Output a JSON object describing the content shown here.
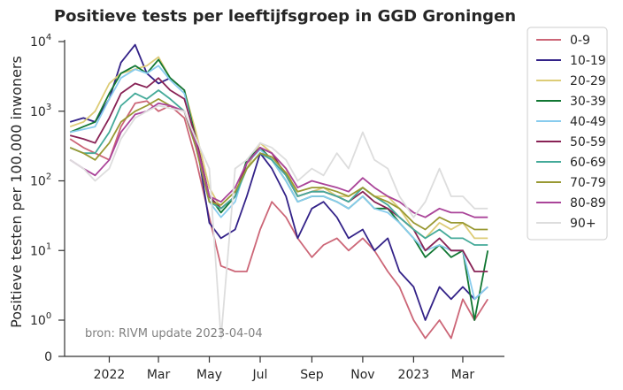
{
  "chart_data": {
    "type": "line",
    "title": "Positieve tests per leeftijfsgroep in GGD Groningen",
    "xlabel": "",
    "ylabel": "Positieve testen per 100.000 inwoners",
    "source": "bron: RIVM update 2023-04-04",
    "yscale": "symlog",
    "yticks": [
      {
        "value": 0,
        "label": "0"
      },
      {
        "value": 1,
        "label": "10",
        "exp": "0"
      },
      {
        "value": 10,
        "label": "10",
        "exp": "1"
      },
      {
        "value": 100,
        "label": "10",
        "exp": "2"
      },
      {
        "value": 1000,
        "label": "10",
        "exp": "3"
      },
      {
        "value": 10000,
        "label": "10",
        "exp": "4"
      }
    ],
    "xrange": [
      "2021-11-01",
      "2023-04-04"
    ],
    "xticks": [
      {
        "date": "2022-01-01",
        "label": "2022"
      },
      {
        "date": "2022-03-01",
        "label": "Mar"
      },
      {
        "date": "2022-05-01",
        "label": "May"
      },
      {
        "date": "2022-07-01",
        "label": "Jul"
      },
      {
        "date": "2022-09-01",
        "label": "Sep"
      },
      {
        "date": "2022-11-01",
        "label": "Nov"
      },
      {
        "date": "2023-01-01",
        "label": "2023"
      },
      {
        "date": "2023-03-01",
        "label": "Mar"
      }
    ],
    "grid": false,
    "legend_position": "outside-right",
    "series": [
      {
        "name": "0-9",
        "color": "#cc6677",
        "x": [
          "2021-11-15",
          "2021-12-01",
          "2021-12-15",
          "2022-01-01",
          "2022-01-15",
          "2022-02-01",
          "2022-02-15",
          "2022-03-01",
          "2022-03-15",
          "2022-04-01",
          "2022-04-15",
          "2022-05-01",
          "2022-05-15",
          "2022-06-01",
          "2022-06-15",
          "2022-07-01",
          "2022-07-15",
          "2022-08-01",
          "2022-08-15",
          "2022-09-01",
          "2022-09-15",
          "2022-10-01",
          "2022-10-15",
          "2022-11-01",
          "2022-11-15",
          "2022-12-01",
          "2022-12-15",
          "2023-01-01",
          "2023-01-15",
          "2023-02-01",
          "2023-02-15",
          "2023-03-01",
          "2023-03-15",
          "2023-03-31"
        ],
        "y": [
          400,
          300,
          250,
          200,
          600,
          1300,
          1400,
          1000,
          1200,
          800,
          200,
          30,
          6,
          5,
          5,
          20,
          50,
          30,
          15,
          8,
          12,
          15,
          10,
          15,
          10,
          5,
          3,
          1,
          0.5,
          1,
          0.5,
          2,
          1,
          2
        ]
      },
      {
        "name": "10-19",
        "color": "#332288",
        "x": [
          "2021-11-15",
          "2021-12-01",
          "2021-12-15",
          "2022-01-01",
          "2022-01-15",
          "2022-02-01",
          "2022-02-15",
          "2022-03-01",
          "2022-03-15",
          "2022-04-01",
          "2022-04-15",
          "2022-05-01",
          "2022-05-15",
          "2022-06-01",
          "2022-06-15",
          "2022-07-01",
          "2022-07-15",
          "2022-08-01",
          "2022-08-15",
          "2022-09-01",
          "2022-09-15",
          "2022-10-01",
          "2022-10-15",
          "2022-11-01",
          "2022-11-15",
          "2022-12-01",
          "2022-12-15",
          "2023-01-01",
          "2023-01-15",
          "2023-02-01",
          "2023-02-15",
          "2023-03-01",
          "2023-03-15",
          "2023-03-31"
        ],
        "y": [
          700,
          800,
          700,
          1500,
          5000,
          9000,
          3500,
          2500,
          3000,
          2000,
          400,
          25,
          15,
          20,
          60,
          250,
          150,
          60,
          15,
          40,
          50,
          30,
          15,
          20,
          10,
          15,
          5,
          3,
          1,
          3,
          2,
          3,
          2,
          3
        ]
      },
      {
        "name": "20-29",
        "color": "#ddcc77",
        "x": [
          "2021-11-15",
          "2021-12-01",
          "2021-12-15",
          "2022-01-01",
          "2022-01-15",
          "2022-02-01",
          "2022-02-15",
          "2022-03-01",
          "2022-03-15",
          "2022-04-01",
          "2022-04-15",
          "2022-05-01",
          "2022-05-15",
          "2022-06-01",
          "2022-06-15",
          "2022-07-01",
          "2022-07-15",
          "2022-08-01",
          "2022-08-15",
          "2022-09-01",
          "2022-09-15",
          "2022-10-01",
          "2022-10-15",
          "2022-11-01",
          "2022-11-15",
          "2022-12-01",
          "2022-12-15",
          "2023-01-01",
          "2023-01-15",
          "2023-02-01",
          "2023-02-15",
          "2023-03-01",
          "2023-03-15",
          "2023-03-31"
        ],
        "y": [
          600,
          700,
          1000,
          2500,
          3500,
          4000,
          4500,
          6000,
          3000,
          2000,
          500,
          80,
          40,
          60,
          150,
          350,
          250,
          150,
          60,
          70,
          80,
          60,
          60,
          80,
          60,
          60,
          40,
          20,
          15,
          25,
          20,
          25,
          15,
          15
        ]
      },
      {
        "name": "30-39",
        "color": "#117733",
        "x": [
          "2021-11-15",
          "2021-12-01",
          "2021-12-15",
          "2022-01-01",
          "2022-01-15",
          "2022-02-01",
          "2022-02-15",
          "2022-03-01",
          "2022-03-15",
          "2022-04-01",
          "2022-04-15",
          "2022-05-01",
          "2022-05-15",
          "2022-06-01",
          "2022-06-15",
          "2022-07-01",
          "2022-07-15",
          "2022-08-01",
          "2022-08-15",
          "2022-09-01",
          "2022-09-15",
          "2022-10-01",
          "2022-10-15",
          "2022-11-01",
          "2022-11-15",
          "2022-12-01",
          "2022-12-15",
          "2023-01-01",
          "2023-01-15",
          "2023-02-01",
          "2023-02-15",
          "2023-03-01",
          "2023-03-15",
          "2023-03-31"
        ],
        "y": [
          500,
          600,
          700,
          1800,
          3500,
          4500,
          3500,
          5500,
          3000,
          2000,
          400,
          60,
          35,
          60,
          200,
          300,
          200,
          100,
          50,
          60,
          60,
          50,
          40,
          60,
          40,
          40,
          25,
          15,
          8,
          12,
          8,
          10,
          1,
          10
        ]
      },
      {
        "name": "40-49",
        "color": "#88ccee",
        "x": [
          "2021-11-15",
          "2021-12-01",
          "2021-12-15",
          "2022-01-01",
          "2022-01-15",
          "2022-02-01",
          "2022-02-15",
          "2022-03-01",
          "2022-03-15",
          "2022-04-01",
          "2022-04-15",
          "2022-05-01",
          "2022-05-15",
          "2022-06-01",
          "2022-06-15",
          "2022-07-01",
          "2022-07-15",
          "2022-08-01",
          "2022-08-15",
          "2022-09-01",
          "2022-09-15",
          "2022-10-01",
          "2022-10-15",
          "2022-11-01",
          "2022-11-15",
          "2022-12-01",
          "2022-12-15",
          "2023-01-01",
          "2023-01-15",
          "2023-02-01",
          "2023-02-15",
          "2023-03-01",
          "2023-03-15",
          "2023-03-31"
        ],
        "y": [
          500,
          550,
          600,
          1500,
          3000,
          4000,
          3500,
          4500,
          2800,
          1800,
          350,
          50,
          30,
          50,
          180,
          280,
          200,
          100,
          50,
          60,
          60,
          50,
          40,
          60,
          40,
          35,
          25,
          15,
          10,
          12,
          10,
          10,
          2,
          3
        ]
      },
      {
        "name": "50-59",
        "color": "#882255",
        "x": [
          "2021-11-15",
          "2021-12-01",
          "2021-12-15",
          "2022-01-01",
          "2022-01-15",
          "2022-02-01",
          "2022-02-15",
          "2022-03-01",
          "2022-03-15",
          "2022-04-01",
          "2022-04-15",
          "2022-05-01",
          "2022-05-15",
          "2022-06-01",
          "2022-06-15",
          "2022-07-01",
          "2022-07-15",
          "2022-08-01",
          "2022-08-15",
          "2022-09-01",
          "2022-09-15",
          "2022-10-01",
          "2022-10-15",
          "2022-11-01",
          "2022-11-15",
          "2022-12-01",
          "2022-12-15",
          "2023-01-01",
          "2023-01-15",
          "2023-02-01",
          "2023-02-15",
          "2023-03-01",
          "2023-03-15",
          "2023-03-31"
        ],
        "y": [
          450,
          400,
          350,
          800,
          1800,
          2500,
          2200,
          3000,
          2000,
          1500,
          400,
          60,
          40,
          60,
          180,
          300,
          250,
          120,
          60,
          70,
          70,
          60,
          50,
          70,
          50,
          40,
          30,
          20,
          10,
          15,
          10,
          10,
          5,
          5
        ]
      },
      {
        "name": "60-69",
        "color": "#44aa99",
        "x": [
          "2021-11-15",
          "2021-12-01",
          "2021-12-15",
          "2022-01-01",
          "2022-01-15",
          "2022-02-01",
          "2022-02-15",
          "2022-03-01",
          "2022-03-15",
          "2022-04-01",
          "2022-04-15",
          "2022-05-01",
          "2022-05-15",
          "2022-06-01",
          "2022-06-15",
          "2022-07-01",
          "2022-07-15",
          "2022-08-01",
          "2022-08-15",
          "2022-09-01",
          "2022-09-15",
          "2022-10-01",
          "2022-10-15",
          "2022-11-01",
          "2022-11-15",
          "2022-12-01",
          "2022-12-15",
          "2023-01-01",
          "2023-01-15",
          "2023-02-01",
          "2023-02-15",
          "2023-03-01",
          "2023-03-15",
          "2023-03-31"
        ],
        "y": [
          300,
          250,
          250,
          500,
          1200,
          1800,
          1500,
          2000,
          1500,
          1000,
          300,
          50,
          40,
          60,
          150,
          250,
          200,
          120,
          60,
          70,
          70,
          60,
          50,
          80,
          60,
          45,
          30,
          20,
          15,
          20,
          15,
          15,
          12,
          12
        ]
      },
      {
        "name": "70-79",
        "color": "#999933",
        "x": [
          "2021-11-15",
          "2021-12-01",
          "2021-12-15",
          "2022-01-01",
          "2022-01-15",
          "2022-02-01",
          "2022-02-15",
          "2022-03-01",
          "2022-03-15",
          "2022-04-01",
          "2022-04-15",
          "2022-05-01",
          "2022-05-15",
          "2022-06-01",
          "2022-06-15",
          "2022-07-01",
          "2022-07-15",
          "2022-08-01",
          "2022-08-15",
          "2022-09-01",
          "2022-09-15",
          "2022-10-01",
          "2022-10-15",
          "2022-11-01",
          "2022-11-15",
          "2022-12-01",
          "2022-12-15",
          "2023-01-01",
          "2023-01-15",
          "2023-02-01",
          "2023-02-15",
          "2023-03-01",
          "2023-03-15",
          "2023-03-31"
        ],
        "y": [
          300,
          250,
          200,
          350,
          700,
          1000,
          1200,
          1500,
          1200,
          1000,
          300,
          50,
          45,
          70,
          150,
          250,
          220,
          130,
          70,
          80,
          80,
          70,
          60,
          80,
          60,
          50,
          40,
          25,
          20,
          30,
          25,
          25,
          20,
          20
        ]
      },
      {
        "name": "80-89",
        "color": "#aa4499",
        "x": [
          "2021-11-15",
          "2021-12-01",
          "2021-12-15",
          "2022-01-01",
          "2022-01-15",
          "2022-02-01",
          "2022-02-15",
          "2022-03-01",
          "2022-03-15",
          "2022-04-01",
          "2022-04-15",
          "2022-05-01",
          "2022-05-15",
          "2022-06-01",
          "2022-06-15",
          "2022-07-01",
          "2022-07-15",
          "2022-08-01",
          "2022-08-15",
          "2022-09-01",
          "2022-09-15",
          "2022-10-01",
          "2022-10-15",
          "2022-11-01",
          "2022-11-15",
          "2022-12-01",
          "2022-12-15",
          "2023-01-01",
          "2023-01-15",
          "2023-02-01",
          "2023-02-15",
          "2023-03-01",
          "2023-03-15",
          "2023-03-31"
        ],
        "y": [
          200,
          150,
          120,
          200,
          500,
          900,
          1000,
          1300,
          1200,
          1000,
          350,
          60,
          50,
          80,
          180,
          300,
          250,
          150,
          80,
          100,
          90,
          80,
          70,
          110,
          80,
          60,
          50,
          35,
          30,
          40,
          35,
          35,
          30,
          30
        ]
      },
      {
        "name": "90+",
        "color": "#dddddd",
        "x": [
          "2021-11-15",
          "2021-12-01",
          "2021-12-15",
          "2022-01-01",
          "2022-01-15",
          "2022-02-01",
          "2022-02-15",
          "2022-03-01",
          "2022-03-15",
          "2022-04-01",
          "2022-04-15",
          "2022-05-01",
          "2022-05-15",
          "2022-06-01",
          "2022-06-15",
          "2022-07-01",
          "2022-07-15",
          "2022-08-01",
          "2022-08-15",
          "2022-09-01",
          "2022-09-15",
          "2022-10-01",
          "2022-10-15",
          "2022-11-01",
          "2022-11-15",
          "2022-12-01",
          "2022-12-15",
          "2023-01-01",
          "2023-01-15",
          "2023-02-01",
          "2023-02-15",
          "2023-03-01",
          "2023-03-15",
          "2023-03-31"
        ],
        "y": [
          200,
          150,
          100,
          150,
          400,
          800,
          1000,
          1200,
          1100,
          1000,
          400,
          150,
          0.5,
          150,
          200,
          350,
          300,
          200,
          100,
          150,
          120,
          250,
          150,
          500,
          200,
          150,
          60,
          30,
          50,
          150,
          60,
          60,
          40,
          40
        ]
      }
    ]
  }
}
